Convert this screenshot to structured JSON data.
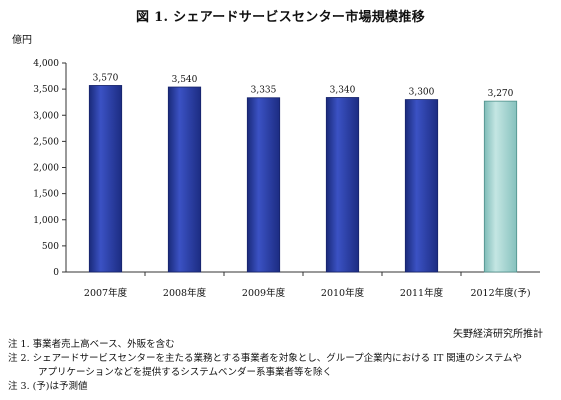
{
  "title": "図 1. シェアードサービスセンター市場規模推移",
  "unit": "億円",
  "source": "矢野経済研究所推計",
  "notes": [
    "注 1. 事業者売上高ベース、外販を含む",
    "注 2. シェアードサービスセンターを主たる業務とする事業者を対象とし、グループ企業内における IT 関連のシステムや",
    "アプリケーションなどを提供するシステムベンダー系事業者等を除く",
    "注 3. (予)は予測値"
  ],
  "chart_data": {
    "type": "bar",
    "title": "図 1. シェアードサービスセンター市場規模推移",
    "ylabel": "億円",
    "xlabel": "",
    "ylim": [
      0,
      4000
    ],
    "yticks": [
      "0",
      "500",
      "1,000",
      "1,500",
      "2,000",
      "2,500",
      "3,000",
      "3,500",
      "4,000"
    ],
    "ytick_values": [
      0,
      500,
      1000,
      1500,
      2000,
      2500,
      3000,
      3500,
      4000
    ],
    "categories": [
      "2007年度",
      "2008年度",
      "2009年度",
      "2010年度",
      "2011年度",
      "2012年度(予)"
    ],
    "values": [
      3570,
      3540,
      3335,
      3340,
      3300,
      3270
    ],
    "value_labels": [
      "3,570",
      "3,540",
      "3,335",
      "3,340",
      "3,300",
      "3,270"
    ],
    "forecast": [
      false,
      false,
      false,
      false,
      false,
      true
    ],
    "colors": {
      "actual": "#2a3d9e",
      "forecast": "#a9d6d3"
    },
    "grid": false
  }
}
